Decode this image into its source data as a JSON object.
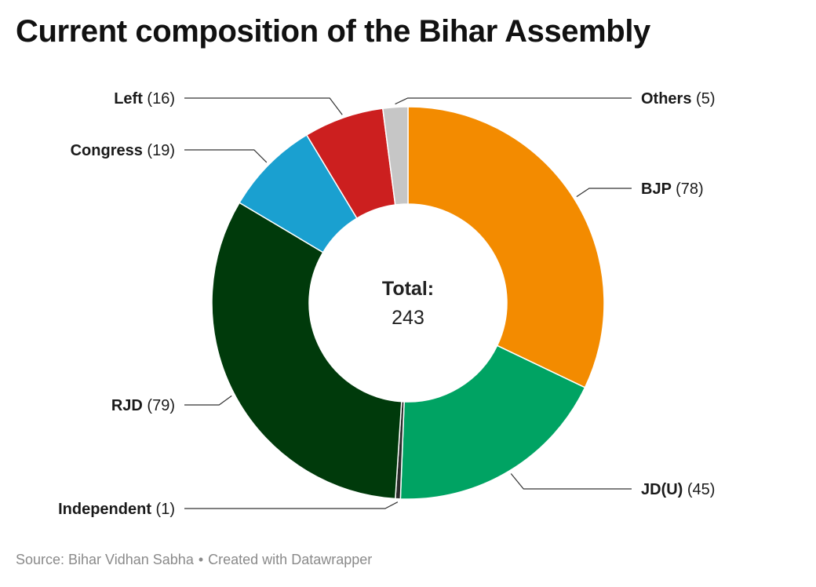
{
  "chart_data": {
    "type": "pie",
    "variant": "donut",
    "title": "Current composition of the Bihar Assembly",
    "center_label": {
      "heading": "Total:",
      "value": "243"
    },
    "slices": [
      {
        "name": "BJP",
        "value": 78,
        "label": "(78)",
        "color": "#f38b00"
      },
      {
        "name": "JD(U)",
        "value": 45,
        "label": "(45)",
        "color": "#00a363"
      },
      {
        "name": "Independent",
        "value": 1,
        "label": "(1)",
        "color": "#2a2a2a"
      },
      {
        "name": "RJD",
        "value": 79,
        "label": "(79)",
        "color": "#003a0b"
      },
      {
        "name": "Congress",
        "value": 19,
        "label": "(19)",
        "color": "#1aa0d0"
      },
      {
        "name": "Left",
        "value": 16,
        "label": "(16)",
        "color": "#cc1f1f"
      },
      {
        "name": "Others",
        "value": 5,
        "label": "(5)",
        "color": "#c6c6c6"
      }
    ]
  },
  "footer": {
    "source": "Source: Bihar Vidhan Sabha",
    "separator": "•",
    "credit": "Created with Datawrapper"
  }
}
